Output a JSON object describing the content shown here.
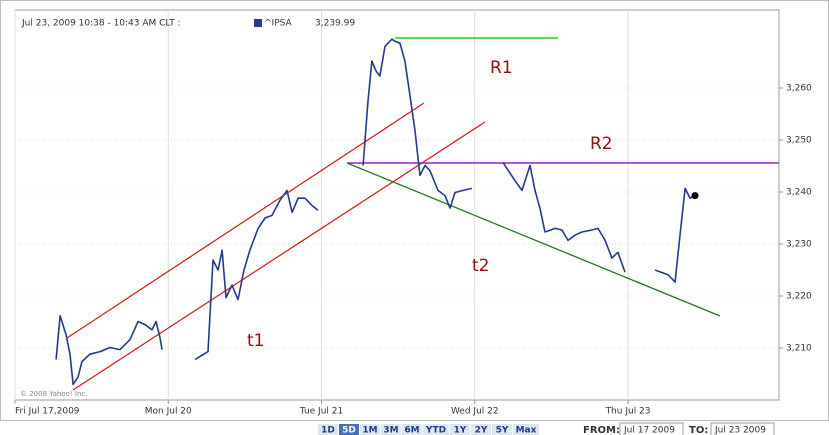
{
  "chart_data": {
    "type": "line",
    "header": "Jul 23, 2009 10:38 - 10:43 AM CLT :",
    "last_quote": "3,239.99",
    "copyright": "© 2008 Yahoo! Inc.",
    "xlim": [
      0,
      4.985
    ],
    "xticks": [
      {
        "value": 0,
        "label": "Fri Jul 17,2009"
      },
      {
        "value": 1,
        "label": "Mon Jul 20"
      },
      {
        "value": 2,
        "label": "Tue Jul 21"
      },
      {
        "value": 3,
        "label": "Wed Jul 22"
      },
      {
        "value": 4,
        "label": "Thu Jul 23"
      }
    ],
    "ylim": [
      3200,
      3275
    ],
    "yticks": [
      {
        "value": 3210,
        "label": "3,210"
      },
      {
        "value": 3220,
        "label": "3,220"
      },
      {
        "value": 3230,
        "label": "3,230"
      },
      {
        "value": 3240,
        "label": "3,240"
      },
      {
        "value": 3250,
        "label": "3,250"
      },
      {
        "value": 3260,
        "label": "3,260"
      }
    ],
    "grid": true,
    "series": [
      {
        "name": "^IPSA",
        "color": "#23398b",
        "x": [
          0.268,
          0.294,
          0.333,
          0.359,
          0.379,
          0.411,
          0.437,
          0.489,
          0.555,
          0.62,
          0.685,
          0.75,
          0.803,
          0.848,
          0.894,
          0.92,
          0.946,
          0.959,
          null,
          1.175,
          1.259,
          1.292,
          1.325,
          1.351,
          1.377,
          1.416,
          1.455,
          1.494,
          1.533,
          1.586,
          1.631,
          1.677,
          1.729,
          1.775,
          1.808,
          1.847,
          1.892,
          1.938,
          1.977,
          null,
          2.271,
          2.303,
          2.329,
          2.355,
          2.381,
          2.414,
          2.46,
          2.479,
          2.512,
          2.544,
          2.577,
          2.61,
          2.642,
          2.675,
          2.708,
          2.76,
          2.806,
          2.838,
          2.871,
          2.923,
          2.982,
          null,
          3.184,
          3.262,
          3.308,
          3.36,
          3.393,
          3.425,
          3.458,
          3.524,
          3.569,
          3.608,
          3.654,
          3.699,
          3.765,
          3.804,
          3.85,
          3.895,
          3.934,
          3.98,
          null,
          4.176,
          4.261,
          4.307,
          4.339,
          4.372,
          4.405,
          4.437
        ],
        "values": [
          3207.8,
          3216.2,
          3212.6,
          3208.8,
          3203.0,
          3204.4,
          3207.4,
          3208.8,
          3209.3,
          3210.1,
          3209.7,
          3211.6,
          3215.1,
          3214.5,
          3213.5,
          3215.1,
          3212.0,
          3209.7,
          null,
          3207.8,
          3209.3,
          3226.9,
          3225.0,
          3228.8,
          3219.7,
          3222.1,
          3219.3,
          3225.0,
          3228.8,
          3233.0,
          3235.0,
          3235.5,
          3238.4,
          3240.3,
          3236.1,
          3238.8,
          3238.8,
          3237.4,
          3236.5,
          null,
          3245.1,
          3257.5,
          3265.2,
          3263.3,
          3262.3,
          3268.0,
          3269.4,
          3269.0,
          3268.6,
          3265.2,
          3258.5,
          3251.8,
          3243.2,
          3245.1,
          3244.1,
          3240.3,
          3239.3,
          3236.9,
          3239.9,
          3240.3,
          3240.7,
          null,
          3245.7,
          3242.2,
          3240.3,
          3245.1,
          3240.3,
          3236.9,
          3232.3,
          3233.0,
          3232.7,
          3230.7,
          3231.7,
          3232.3,
          3232.7,
          3233.0,
          3230.7,
          3227.3,
          3228.4,
          3224.6,
          null,
          3225.0,
          3224.1,
          3222.7,
          3231.7,
          3240.7,
          3238.8,
          3239.3
        ]
      }
    ],
    "annotations": [
      "R1",
      "R2",
      "t1",
      "t2"
    ],
    "range_buttons": [
      "1D",
      "5D",
      "1M",
      "3M",
      "6M",
      "YTD",
      "1Y",
      "2Y",
      "5Y",
      "Max"
    ],
    "selected_range": 1,
    "from_label": "FROM:",
    "from_value": "Jul 17 2009",
    "to_label": "TO:",
    "to_value": "Jul 23 2009"
  }
}
